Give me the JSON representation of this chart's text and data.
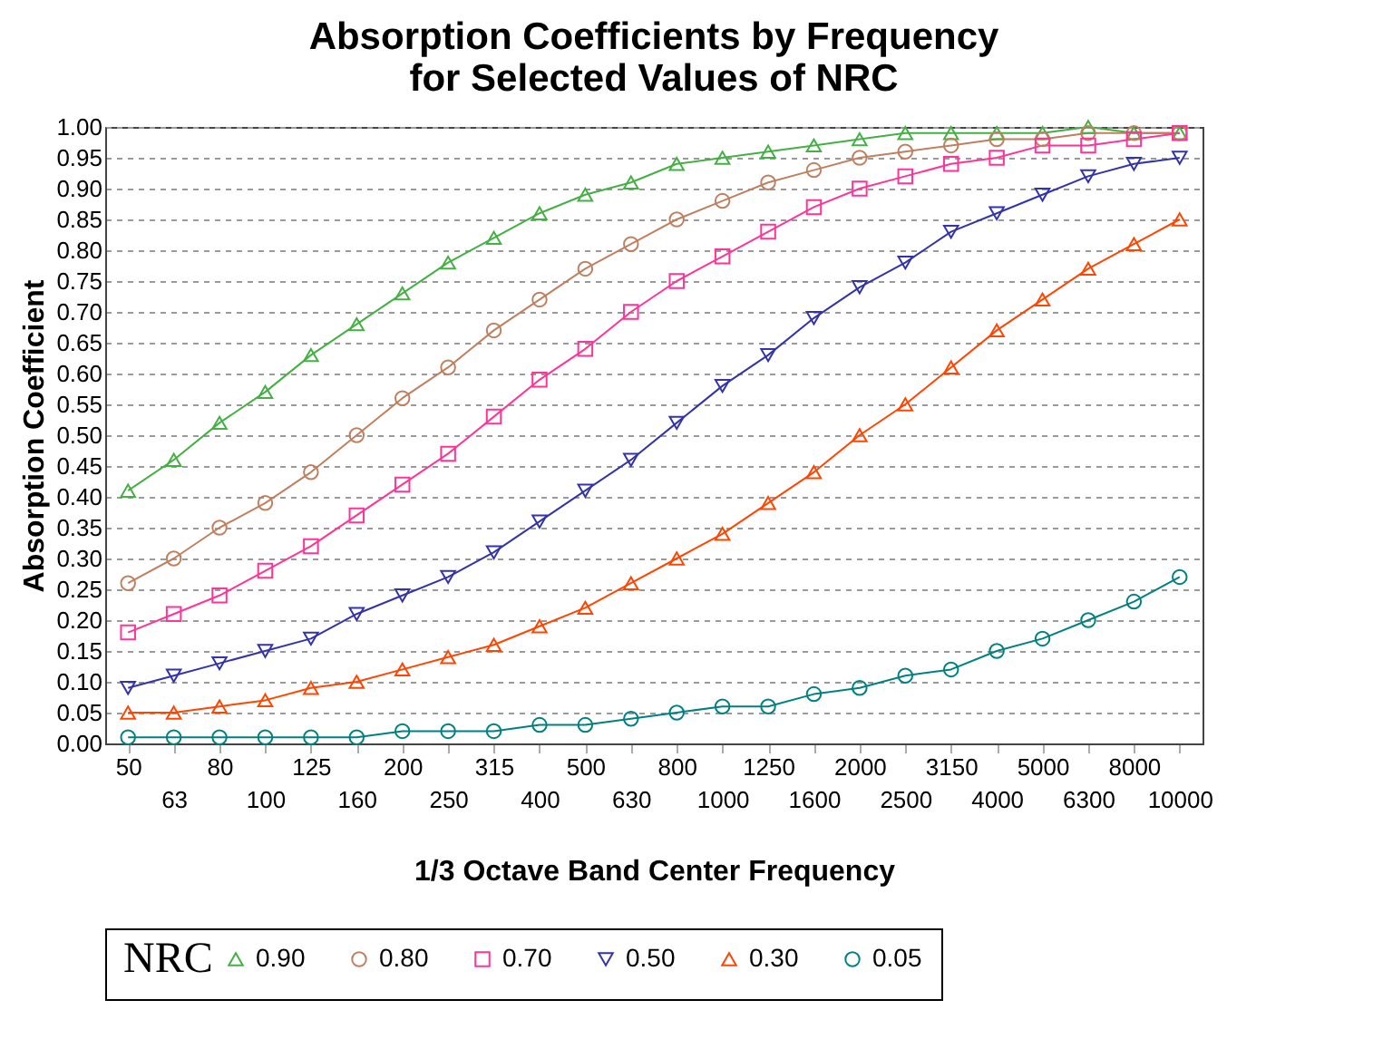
{
  "chart_data": {
    "type": "line",
    "title": "Absorption Coefficients by Frequency\nfor Selected Values of NRC",
    "xlabel": "1/3 Octave Band Center Frequency",
    "ylabel": "Absorption Coefficient",
    "legend_title": "NRC",
    "categories": [
      "50",
      "63",
      "80",
      "100",
      "125",
      "160",
      "200",
      "250",
      "315",
      "400",
      "500",
      "630",
      "800",
      "1000",
      "1250",
      "1600",
      "2000",
      "2500",
      "3150",
      "4000",
      "5000",
      "6300",
      "8000",
      "10000"
    ],
    "series": [
      {
        "name": "0.90",
        "color": "#44b044",
        "marker": "triangle",
        "values": [
          0.41,
          0.46,
          0.52,
          0.57,
          0.63,
          0.68,
          0.73,
          0.78,
          0.82,
          0.86,
          0.89,
          0.91,
          0.94,
          0.95,
          0.96,
          0.97,
          0.98,
          0.99,
          0.99,
          0.99,
          0.99,
          1.0,
          0.99,
          0.99
        ]
      },
      {
        "name": "0.80",
        "color": "#c08060",
        "marker": "circle",
        "values": [
          0.26,
          0.3,
          0.35,
          0.39,
          0.44,
          0.5,
          0.56,
          0.61,
          0.67,
          0.72,
          0.77,
          0.81,
          0.85,
          0.88,
          0.91,
          0.93,
          0.95,
          0.96,
          0.97,
          0.98,
          0.98,
          0.99,
          0.99,
          0.99
        ]
      },
      {
        "name": "0.70",
        "color": "#ff3399",
        "marker": "square",
        "values": [
          0.18,
          0.21,
          0.24,
          0.28,
          0.32,
          0.37,
          0.42,
          0.47,
          0.53,
          0.59,
          0.64,
          0.7,
          0.75,
          0.79,
          0.83,
          0.87,
          0.9,
          0.92,
          0.94,
          0.95,
          0.97,
          0.97,
          0.98,
          0.99
        ]
      },
      {
        "name": "0.50",
        "color": "#3333aa",
        "marker": "triangle-down",
        "values": [
          0.09,
          0.11,
          0.13,
          0.15,
          0.17,
          0.21,
          0.24,
          0.27,
          0.31,
          0.36,
          0.41,
          0.46,
          0.52,
          0.58,
          0.63,
          0.69,
          0.74,
          0.78,
          0.83,
          0.86,
          0.89,
          0.92,
          0.94,
          0.95
        ]
      },
      {
        "name": "0.30",
        "color": "#ff4500",
        "marker": "triangle",
        "values": [
          0.05,
          0.05,
          0.06,
          0.07,
          0.09,
          0.1,
          0.12,
          0.14,
          0.16,
          0.19,
          0.22,
          0.26,
          0.3,
          0.34,
          0.39,
          0.44,
          0.5,
          0.55,
          0.61,
          0.67,
          0.72,
          0.77,
          0.81,
          0.85
        ]
      },
      {
        "name": "0.05",
        "color": "#008080",
        "marker": "circle",
        "values": [
          0.01,
          0.01,
          0.01,
          0.01,
          0.01,
          0.01,
          0.02,
          0.02,
          0.02,
          0.03,
          0.03,
          0.04,
          0.05,
          0.06,
          0.06,
          0.08,
          0.09,
          0.11,
          0.12,
          0.15,
          0.17,
          0.2,
          0.23,
          0.27
        ]
      }
    ],
    "ylim": [
      0,
      1
    ],
    "yticks": [
      {
        "value": 0,
        "label": "0.00"
      },
      {
        "value": 0.05,
        "label": "0.05"
      },
      {
        "value": 0.1,
        "label": "0.10"
      },
      {
        "value": 0.15,
        "label": "0.15"
      },
      {
        "value": 0.2,
        "label": "0.20"
      },
      {
        "value": 0.25,
        "label": "0.25"
      },
      {
        "value": 0.3,
        "label": "0.30"
      },
      {
        "value": 0.35,
        "label": "0.35"
      },
      {
        "value": 0.4,
        "label": "0.40"
      },
      {
        "value": 0.45,
        "label": "0.45"
      },
      {
        "value": 0.5,
        "label": "0.50"
      },
      {
        "value": 0.55,
        "label": "0.55"
      },
      {
        "value": 0.6,
        "label": "0.60"
      },
      {
        "value": 0.65,
        "label": "0.65"
      },
      {
        "value": 0.7,
        "label": "0.70"
      },
      {
        "value": 0.75,
        "label": "0.75"
      },
      {
        "value": 0.8,
        "label": "0.80"
      },
      {
        "value": 0.85,
        "label": "0.85"
      },
      {
        "value": 0.9,
        "label": "0.90"
      },
      {
        "value": 0.95,
        "label": "0.95"
      },
      {
        "value": 1,
        "label": "1.00"
      }
    ],
    "grid": "y",
    "legend": "bottom",
    "line_style": "solid"
  }
}
